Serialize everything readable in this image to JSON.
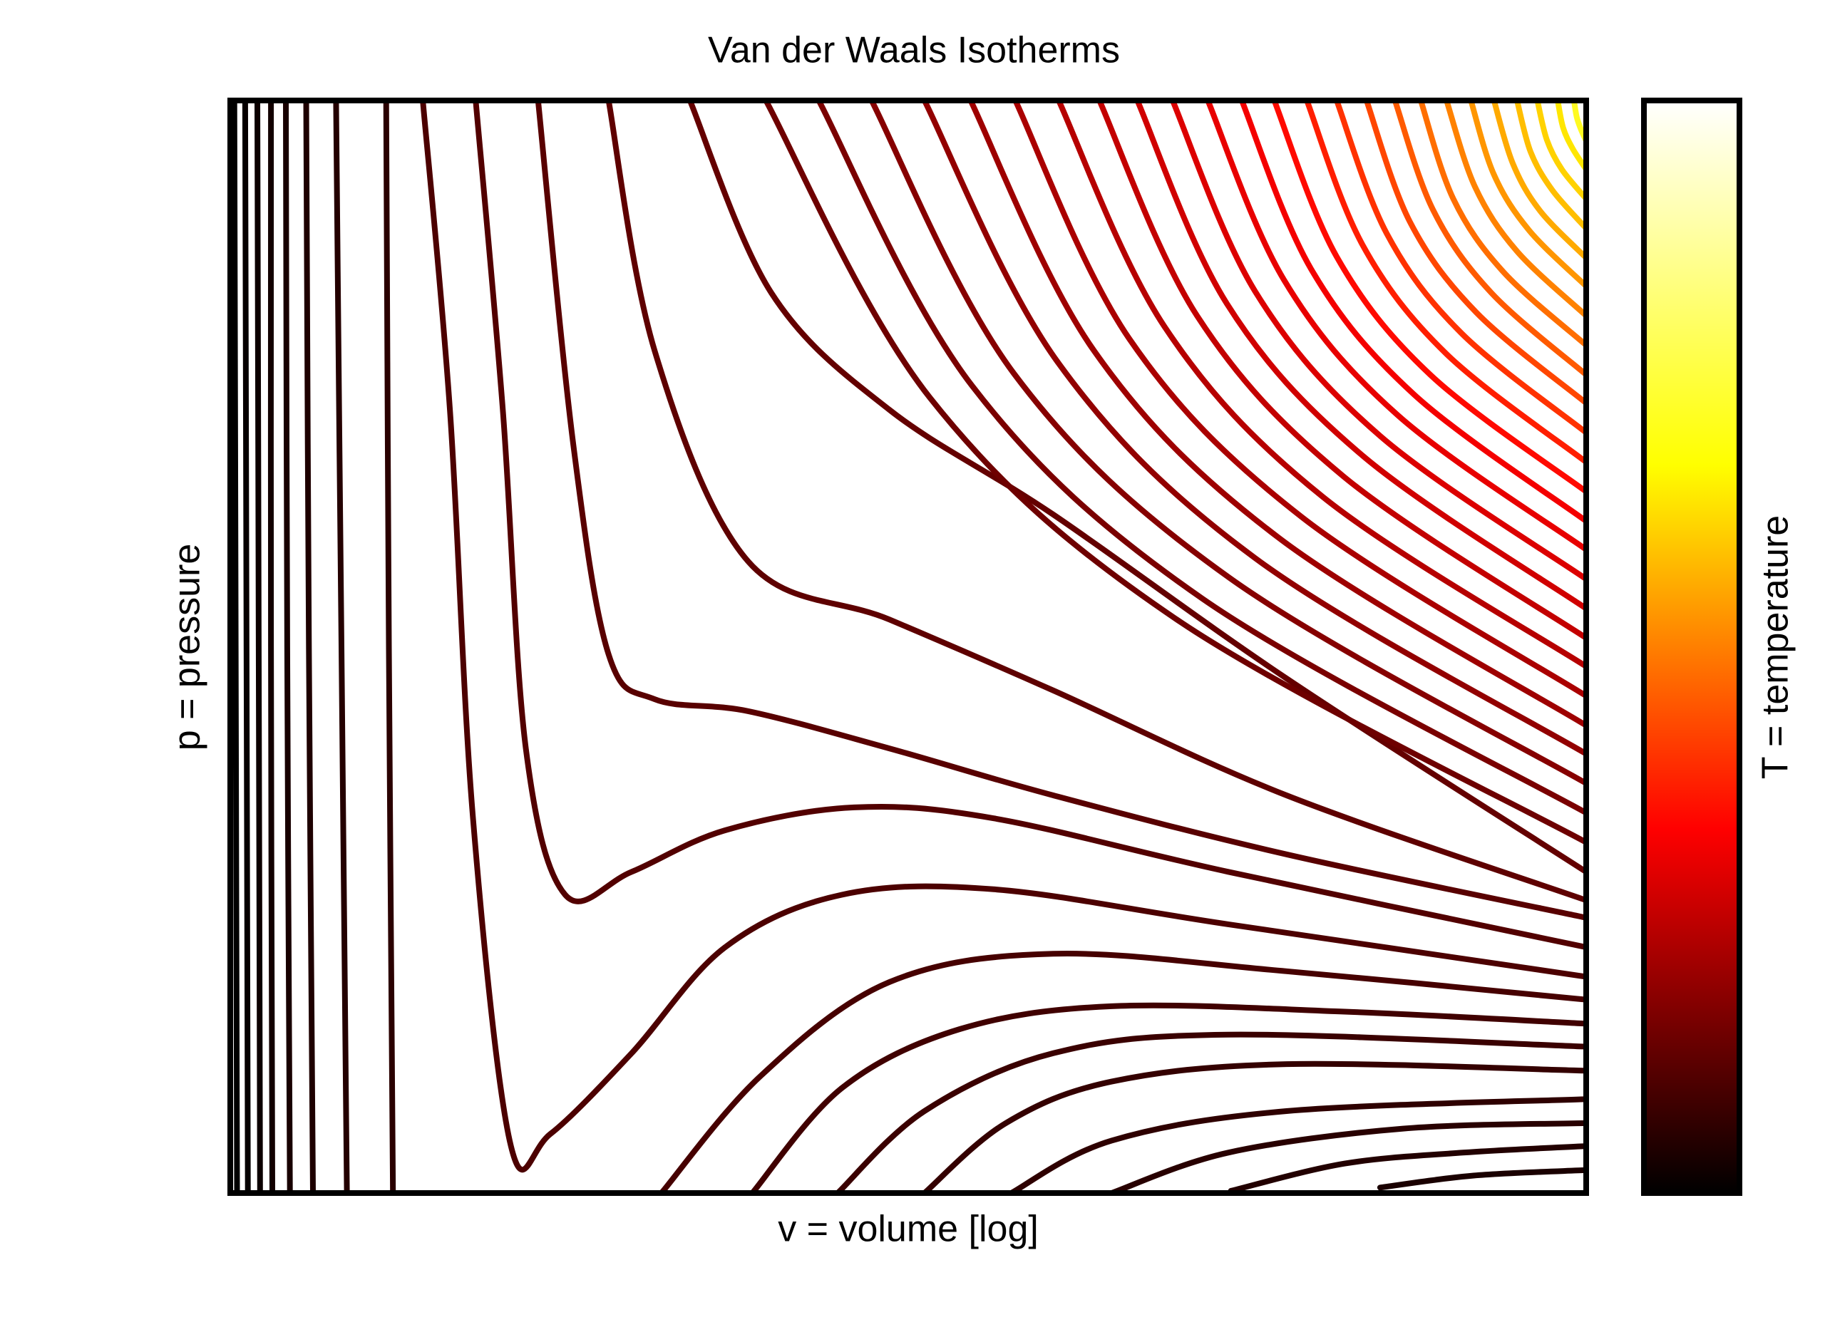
{
  "chart_data": {
    "type": "line",
    "title": "Van der Waals Isotherms",
    "xlabel": "v = volume [log]",
    "ylabel": "p = pressure",
    "xlim": [
      0,
      100
    ],
    "ylim": [
      0,
      100
    ],
    "colorbar": {
      "label": "T = temperature",
      "colors": [
        "#000000",
        "#ff0000",
        "#ffff00",
        "#ffffff"
      ]
    },
    "series": [
      {
        "color": "#000000",
        "x": [
          0.3,
          0.4,
          0.5
        ],
        "values": [
          100,
          50,
          0
        ]
      },
      {
        "color": "#060000",
        "x": [
          1.1,
          1.2,
          1.3
        ],
        "values": [
          100,
          50,
          0
        ]
      },
      {
        "color": "#0c0000",
        "x": [
          2.0,
          2.1,
          2.2
        ],
        "values": [
          100,
          50,
          0
        ]
      },
      {
        "color": "#120000",
        "x": [
          3.0,
          3.0,
          3.1
        ],
        "values": [
          100,
          50,
          0
        ]
      },
      {
        "color": "#180000",
        "x": [
          4.1,
          4.2,
          4.4
        ],
        "values": [
          100,
          50,
          0
        ]
      },
      {
        "color": "#1e0000",
        "x": [
          5.6,
          5.8,
          6.1
        ],
        "values": [
          100,
          50,
          0
        ]
      },
      {
        "color": "#240000",
        "x": [
          7.8,
          8.2,
          8.6
        ],
        "values": [
          100,
          50,
          0
        ]
      },
      {
        "color": "#2a0000",
        "x": [
          11.5,
          11.7,
          12.0
        ],
        "values": [
          100,
          50,
          0
        ]
      },
      {
        "color": "#1a0000",
        "x": [
          84.8,
          91.7,
          100
        ],
        "values": [
          0.5,
          1.6,
          2.1
        ]
      },
      {
        "color": "#220000",
        "x": [
          73.8,
          82.2,
          90.9,
          100
        ],
        "values": [
          0.2,
          2.7,
          3.7,
          4.3
        ]
      },
      {
        "color": "#280000",
        "x": [
          65.0,
          73.6,
          86.5,
          100
        ],
        "values": [
          0,
          3.7,
          5.9,
          6.4
        ]
      },
      {
        "color": "#2e0000",
        "x": [
          57.6,
          65.0,
          77.9,
          100
        ],
        "values": [
          0,
          4.8,
          7.5,
          8.6
        ]
      },
      {
        "color": "#340000",
        "x": [
          51.2,
          57.2,
          65.0,
          77.9,
          100
        ],
        "values": [
          0,
          6.4,
          10.2,
          11.8,
          11.2
        ]
      },
      {
        "color": "#3a0000",
        "x": [
          44.8,
          51.2,
          60.7,
          73.6,
          100
        ],
        "values": [
          0,
          7.5,
          12.8,
          14.5,
          13.4
        ]
      },
      {
        "color": "#400000",
        "x": [
          38.5,
          45.1,
          53.8,
          65.0,
          82.2,
          100
        ],
        "values": [
          0,
          9.6,
          15.0,
          17.1,
          16.6,
          15.5
        ]
      },
      {
        "color": "#460000",
        "x": [
          31.8,
          39.1,
          48.6,
          60.7,
          77.9,
          100
        ],
        "values": [
          0,
          10.7,
          19.3,
          21.9,
          20.3,
          17.7
        ]
      },
      {
        "color": "#4c0000",
        "x": [
          14.2,
          16.2,
          17.9,
          20.7,
          23.6,
          29.6,
          36.5,
          45.1,
          56.3,
          73.6,
          100
        ],
        "values": [
          100,
          71.7,
          34.3,
          4.3,
          5.4,
          12.8,
          22.5,
          27.3,
          27.8,
          24.6,
          19.8
        ]
      },
      {
        "color": "#520000",
        "x": [
          18.1,
          20.1,
          21.8,
          24.7,
          29.6,
          36.5,
          46.0,
          56.3,
          73.6,
          100
        ],
        "values": [
          100,
          71.7,
          40.7,
          27.3,
          29.4,
          33.2,
          35.3,
          34.3,
          29.4,
          22.5
        ]
      },
      {
        "color": "#580000",
        "x": [
          22.7,
          25.3,
          27.9,
          31.3,
          38.2,
          48.6,
          60.7,
          77.9,
          100
        ],
        "values": [
          100,
          68.5,
          49.3,
          45.2,
          44.1,
          40.7,
          36.4,
          31.0,
          25.2
        ]
      },
      {
        "color": "#5e0000",
        "x": [
          27.9,
          31.3,
          38.2,
          48.6,
          60.7,
          77.9,
          100
        ],
        "values": [
          100,
          77.1,
          57.8,
          52.5,
          46.0,
          36.4,
          26.8
        ]
      },
      {
        "color": "#640000",
        "x": [
          33.9,
          39.9,
          48.6,
          60.7,
          77.9,
          100
        ],
        "values": [
          100,
          82.4,
          71.7,
          62.1,
          47.1,
          29.4
        ]
      },
      {
        "color": "#6e0000",
        "x": [
          39.5,
          51.6,
          69.8,
          100
        ],
        "values": [
          100,
          72.8,
          52.5,
          32.1
        ]
      },
      {
        "color": "#7a0000",
        "x": [
          43.4,
          54.7,
          71.7,
          100
        ],
        "values": [
          100,
          73.9,
          54.4,
          34.8
        ]
      },
      {
        "color": "#860000",
        "x": [
          47.3,
          57.8,
          73.7,
          100
        ],
        "values": [
          100,
          75.0,
          56.3,
          37.5
        ]
      },
      {
        "color": "#920000",
        "x": [
          51.2,
          61.0,
          75.6,
          100
        ],
        "values": [
          100,
          76.1,
          58.1,
          40.2
        ]
      },
      {
        "color": "#9e0000",
        "x": [
          54.6,
          63.7,
          77.3,
          100
        ],
        "values": [
          100,
          77.1,
          60.0,
          42.8
        ]
      },
      {
        "color": "#aa0000",
        "x": [
          57.9,
          66.3,
          79.0,
          100
        ],
        "values": [
          100,
          78.2,
          61.9,
          45.5
        ]
      },
      {
        "color": "#b60000",
        "x": [
          61.1,
          68.9,
          80.6,
          100
        ],
        "values": [
          100,
          79.3,
          63.7,
          48.2
        ]
      },
      {
        "color": "#c30000",
        "x": [
          64.1,
          71.3,
          82.1,
          100
        ],
        "values": [
          100,
          80.3,
          65.6,
          50.8
        ]
      },
      {
        "color": "#d00000",
        "x": [
          66.9,
          73.5,
          83.5,
          100
        ],
        "values": [
          100,
          81.4,
          67.5,
          53.5
        ]
      },
      {
        "color": "#dc0000",
        "x": [
          69.5,
          75.6,
          84.8,
          100
        ],
        "values": [
          100,
          82.5,
          69.3,
          56.2
        ]
      },
      {
        "color": "#e80000",
        "x": [
          72.1,
          77.7,
          86.1,
          100
        ],
        "values": [
          100,
          83.6,
          71.2,
          58.9
        ]
      },
      {
        "color": "#f40000",
        "x": [
          74.6,
          79.7,
          87.3,
          100
        ],
        "values": [
          100,
          84.6,
          73.1,
          61.5
        ]
      },
      {
        "color": "#ff0a00",
        "x": [
          77.0,
          81.6,
          88.5,
          100
        ],
        "values": [
          100,
          85.7,
          74.9,
          64.2
        ]
      },
      {
        "color": "#ff1e00",
        "x": [
          79.4,
          83.5,
          89.7,
          100
        ],
        "values": [
          100,
          86.8,
          76.8,
          66.9
        ]
      },
      {
        "color": "#ff3200",
        "x": [
          81.6,
          85.3,
          90.8,
          100
        ],
        "values": [
          100,
          87.8,
          78.7,
          69.6
        ]
      },
      {
        "color": "#ff4600",
        "x": [
          83.8,
          87.0,
          91.9,
          100
        ],
        "values": [
          100,
          88.9,
          80.6,
          72.3
        ]
      },
      {
        "color": "#ff5a00",
        "x": [
          85.9,
          88.7,
          93.0,
          100
        ],
        "values": [
          100,
          90.0,
          82.4,
          74.9
        ]
      },
      {
        "color": "#ff6e00",
        "x": [
          87.8,
          90.2,
          93.9,
          100
        ],
        "values": [
          100,
          91.0,
          84.3,
          77.6
        ]
      },
      {
        "color": "#ff8200",
        "x": [
          89.7,
          91.8,
          94.9,
          100
        ],
        "values": [
          100,
          92.1,
          86.2,
          80.3
        ]
      },
      {
        "color": "#ff9600",
        "x": [
          91.5,
          93.2,
          95.8,
          100
        ],
        "values": [
          100,
          93.2,
          88.1,
          83.0
        ]
      },
      {
        "color": "#ffaa00",
        "x": [
          93.2,
          94.6,
          96.6,
          100
        ],
        "values": [
          100,
          94.2,
          89.9,
          85.6
        ]
      },
      {
        "color": "#ffbe00",
        "x": [
          94.9,
          95.9,
          97.5,
          100
        ],
        "values": [
          100,
          95.3,
          91.8,
          88.3
        ]
      },
      {
        "color": "#ffd200",
        "x": [
          96.4,
          97.1,
          98.2,
          100
        ],
        "values": [
          100,
          96.4,
          93.7,
          91.0
        ]
      },
      {
        "color": "#ffe600",
        "x": [
          97.9,
          98.3,
          99.0,
          100
        ],
        "values": [
          100,
          97.5,
          95.6,
          93.7
        ]
      },
      {
        "color": "#fffa20",
        "x": [
          99.1,
          99.3,
          99.6,
          100
        ],
        "values": [
          100,
          98.5,
          97.4,
          96.3
        ]
      }
    ]
  }
}
